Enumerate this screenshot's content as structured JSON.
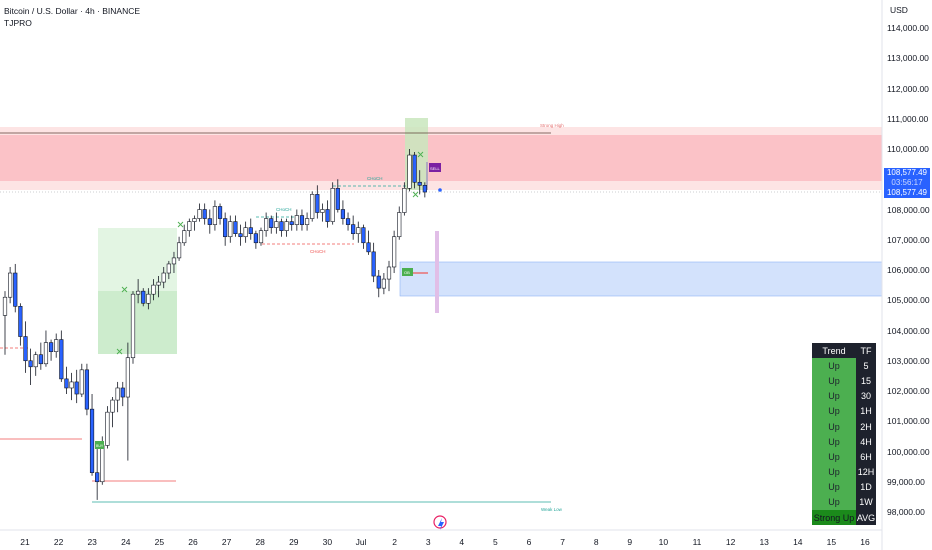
{
  "header": {
    "title": "Bitcoin / U.S. Dollar · 4h · BINANCE",
    "indicator": "TJPRO"
  },
  "price_axis": {
    "currency": "USD",
    "ticks": [
      "114,000.00",
      "113,000.00",
      "112,000.00",
      "111,000.00",
      "110,000.00",
      "109,000.00",
      "108,000.00",
      "107,000.00",
      "106,000.00",
      "105,000.00",
      "104,000.00",
      "103,000.00",
      "102,000.00",
      "101,000.00",
      "100,000.00",
      "99,000.00",
      "98,000.00"
    ]
  },
  "time_axis": {
    "ticks": [
      "21",
      "22",
      "23",
      "24",
      "25",
      "26",
      "27",
      "28",
      "29",
      "30",
      "Jul",
      "2",
      "3",
      "4",
      "5",
      "6",
      "7",
      "8",
      "9",
      "10",
      "11",
      "12",
      "13",
      "14",
      "15",
      "16"
    ]
  },
  "price_tags": {
    "last": "108,577.49",
    "countdown": "03:56:17",
    "second": "108,577.49"
  },
  "annotations": {
    "strong_high": "Strong High",
    "weak_low": "Weak Low",
    "choch_labels": [
      "CHoCH",
      "CHoCH",
      "CHoCH"
    ],
    "sell": "SELL",
    "buy": "BUY",
    "ob": "OB"
  },
  "trend_table": {
    "header": {
      "trend": "Trend",
      "tf": "TF"
    },
    "rows": [
      {
        "trend": "Up",
        "tf": "5"
      },
      {
        "trend": "Up",
        "tf": "15"
      },
      {
        "trend": "Up",
        "tf": "30"
      },
      {
        "trend": "Up",
        "tf": "1H"
      },
      {
        "trend": "Up",
        "tf": "2H"
      },
      {
        "trend": "Up",
        "tf": "4H"
      },
      {
        "trend": "Up",
        "tf": "6H"
      },
      {
        "trend": "Up",
        "tf": "12H"
      },
      {
        "trend": "Up",
        "tf": "1D"
      },
      {
        "trend": "Up",
        "tf": "1W"
      }
    ],
    "footer": {
      "trend": "Strong Up",
      "tf": "AVG"
    }
  },
  "colors": {
    "bull_body": "#ffffff",
    "bear_body": "#2962ff",
    "wick": "#131722",
    "supply_zone": "#f8bbd0",
    "demand_zone": "#bbd3fb",
    "trend_up": "#4caf50",
    "accent": "#2962ff"
  },
  "chart_data": {
    "type": "candlestick",
    "title": "Bitcoin / U.S. Dollar · 4h · BINANCE",
    "ylim": [
      97700,
      114500
    ],
    "x_categories": [
      "21",
      "22",
      "23",
      "24",
      "25",
      "26",
      "27",
      "28",
      "29",
      "30",
      "Jul",
      "2",
      "3"
    ],
    "ohlc": [
      [
        104500,
        105300,
        103200,
        105100
      ],
      [
        105100,
        106100,
        104900,
        105900
      ],
      [
        105900,
        106200,
        104600,
        104800
      ],
      [
        104800,
        104900,
        103500,
        103800
      ],
      [
        103800,
        104300,
        102600,
        103000
      ],
      [
        103000,
        103400,
        102200,
        102800
      ],
      [
        102800,
        103300,
        102500,
        103200
      ],
      [
        103200,
        103600,
        102700,
        102900
      ],
      [
        102900,
        104000,
        102800,
        103600
      ],
      [
        103600,
        103700,
        103000,
        103300
      ],
      [
        103300,
        103900,
        103100,
        103700
      ],
      [
        103700,
        104000,
        102300,
        102400
      ],
      [
        102400,
        102800,
        101900,
        102100
      ],
      [
        102100,
        102600,
        101700,
        102300
      ],
      [
        102300,
        102700,
        101600,
        101900
      ],
      [
        101900,
        102900,
        101800,
        102700
      ],
      [
        102700,
        102900,
        101200,
        101400
      ],
      [
        101400,
        101900,
        99200,
        99300
      ],
      [
        99300,
        100100,
        98400,
        99000
      ],
      [
        99000,
        100500,
        98900,
        100200
      ],
      [
        100200,
        101500,
        100100,
        101300
      ],
      [
        101300,
        101800,
        100800,
        101700
      ],
      [
        101700,
        102300,
        101300,
        102100
      ],
      [
        102100,
        102300,
        101500,
        101800
      ],
      [
        101800,
        103600,
        99700,
        103100
      ],
      [
        103100,
        105300,
        102900,
        105200
      ],
      [
        105200,
        105700,
        104900,
        105300
      ],
      [
        105300,
        105400,
        104800,
        104900
      ],
      [
        104900,
        105400,
        104700,
        105200
      ],
      [
        105200,
        105700,
        105000,
        105500
      ],
      [
        105500,
        105800,
        105100,
        105600
      ],
      [
        105600,
        106100,
        105400,
        105900
      ],
      [
        105900,
        106300,
        105700,
        106200
      ],
      [
        106200,
        106600,
        105900,
        106400
      ],
      [
        106400,
        107100,
        106300,
        106900
      ],
      [
        106900,
        107500,
        106800,
        107300
      ],
      [
        107300,
        107700,
        107100,
        107600
      ],
      [
        107600,
        107800,
        107300,
        107700
      ],
      [
        107700,
        108200,
        107600,
        108000
      ],
      [
        108000,
        108200,
        107500,
        107700
      ],
      [
        107700,
        108000,
        107200,
        107500
      ],
      [
        107500,
        108300,
        107300,
        108100
      ],
      [
        108100,
        108200,
        107500,
        107700
      ],
      [
        107700,
        107900,
        106800,
        107100
      ],
      [
        107100,
        107800,
        106900,
        107600
      ],
      [
        107600,
        107800,
        107100,
        107200
      ],
      [
        107200,
        107500,
        106800,
        107100
      ],
      [
        107100,
        107600,
        106900,
        107400
      ],
      [
        107400,
        107700,
        107000,
        107200
      ],
      [
        107200,
        107300,
        106700,
        106900
      ],
      [
        106900,
        107400,
        106800,
        107300
      ],
      [
        107300,
        107900,
        107100,
        107700
      ],
      [
        107700,
        107800,
        107200,
        107400
      ],
      [
        107400,
        107900,
        107200,
        107600
      ],
      [
        107600,
        107700,
        107100,
        107300
      ],
      [
        107300,
        107700,
        107100,
        107600
      ],
      [
        107600,
        107800,
        107300,
        107500
      ],
      [
        107500,
        108000,
        107300,
        107800
      ],
      [
        107800,
        108000,
        107300,
        107500
      ],
      [
        107500,
        107900,
        107300,
        107700
      ],
      [
        107700,
        108600,
        107600,
        108500
      ],
      [
        108500,
        108800,
        107700,
        107900
      ],
      [
        107900,
        108200,
        107600,
        108000
      ],
      [
        108000,
        108300,
        107400,
        107600
      ],
      [
        107600,
        108900,
        107500,
        108700
      ],
      [
        108700,
        109000,
        107900,
        108000
      ],
      [
        108000,
        108300,
        107500,
        107700
      ],
      [
        107700,
        107900,
        107300,
        107500
      ],
      [
        107500,
        107800,
        107000,
        107200
      ],
      [
        107200,
        107600,
        106900,
        107400
      ],
      [
        107400,
        107500,
        106700,
        106900
      ],
      [
        106900,
        107300,
        106500,
        106600
      ],
      [
        106600,
        106900,
        105600,
        105800
      ],
      [
        105800,
        106000,
        105100,
        105400
      ],
      [
        105400,
        105900,
        105200,
        105700
      ],
      [
        105700,
        106300,
        105300,
        106100
      ],
      [
        106100,
        107300,
        105900,
        107100
      ],
      [
        107100,
        108100,
        107000,
        107900
      ],
      [
        107900,
        108900,
        107800,
        108700
      ],
      [
        108700,
        110000,
        108600,
        109800
      ],
      [
        109800,
        109900,
        108700,
        108900
      ],
      [
        108900,
        109300,
        108500,
        108800
      ],
      [
        108800,
        108900,
        108400,
        108577.49
      ]
    ],
    "zones": [
      {
        "name": "supply",
        "from": 108850,
        "to": 110400
      },
      {
        "name": "demand",
        "from": 105100,
        "to": 106200
      }
    ],
    "levels": [
      {
        "label": "Strong High",
        "value": 110480
      },
      {
        "label": "Weak Low",
        "value": 98400
      }
    ]
  }
}
